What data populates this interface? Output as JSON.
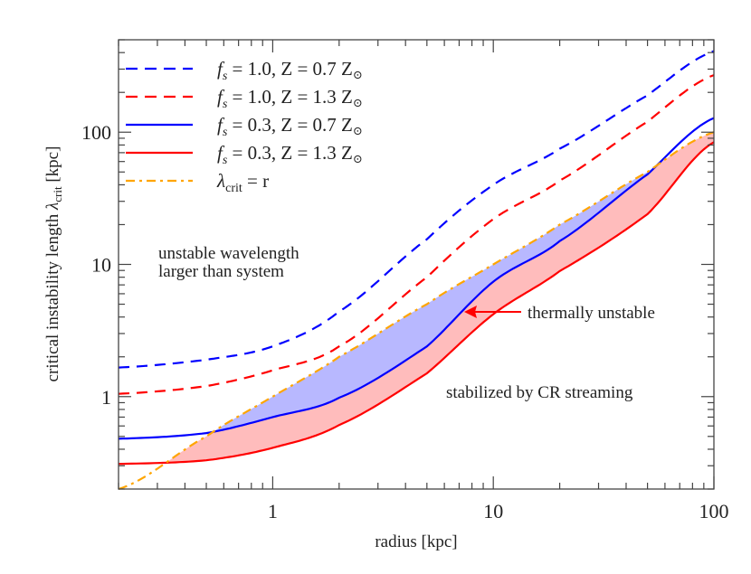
{
  "chart_data": {
    "type": "line",
    "xlabel": "radius [kpc]",
    "ylabel_main": "critical instability length ",
    "ylabel_symbol": "λ",
    "ylabel_sub": "crit",
    "ylabel_unit": " [kpc]",
    "xscale": "log",
    "yscale": "log",
    "xlim": [
      0.2,
      100
    ],
    "ylim": [
      0.2,
      500
    ],
    "x_ticks": [
      {
        "v": 1,
        "label": "1"
      },
      {
        "v": 10,
        "label": "10"
      },
      {
        "v": 100,
        "label": "100"
      }
    ],
    "y_ticks": [
      {
        "v": 1,
        "label": "1"
      },
      {
        "v": 10,
        "label": "10"
      },
      {
        "v": 100,
        "label": "100"
      }
    ],
    "grid": false,
    "legend_placement": "top-left",
    "x": [
      0.2,
      0.5,
      1,
      2,
      5,
      10,
      20,
      50,
      100
    ],
    "series": [
      {
        "name": "f_s = 1.0, Z = 0.7 Z_sun",
        "legend": {
          "f": "f",
          "s": "s",
          "text": " = 1.0, Z = 0.7 Z",
          "sun": "⊙"
        },
        "color": "#0000ff",
        "style": "dashed",
        "values": [
          1.66,
          1.9,
          2.4,
          4.4,
          15.5,
          40,
          75,
          190,
          410
        ]
      },
      {
        "name": "f_s = 1.0, Z = 1.3 Z_sun",
        "legend": {
          "f": "f",
          "s": "s",
          "text": " = 1.0, Z = 1.3 Z",
          "sun": "⊙"
        },
        "color": "#ff0000",
        "style": "dashed",
        "values": [
          1.05,
          1.2,
          1.58,
          2.4,
          8,
          22,
          43,
          120,
          270
        ]
      },
      {
        "name": "f_s = 0.3, Z = 0.7 Z_sun",
        "legend": {
          "f": "f",
          "s": "s",
          "text": " = 0.3, Z = 0.7 Z",
          "sun": "⊙"
        },
        "color": "#0000ff",
        "style": "solid",
        "values": [
          0.48,
          0.53,
          0.7,
          0.98,
          2.4,
          7.4,
          15,
          48,
          128
        ]
      },
      {
        "name": "f_s = 0.3, Z = 1.3 Z_sun",
        "legend": {
          "f": "f",
          "s": "s",
          "text": " = 0.3, Z = 1.3 Z",
          "sun": "⊙"
        },
        "color": "#ff0000",
        "style": "solid",
        "values": [
          0.31,
          0.33,
          0.41,
          0.61,
          1.5,
          4.2,
          8.9,
          24,
          84
        ]
      },
      {
        "name": "λcrit = r",
        "legend": {
          "f": "λ",
          "s": "crit",
          "text": " = r",
          "sun": ""
        },
        "color": "#ffa500",
        "style": "dashdot",
        "values": [
          0.2,
          0.5,
          1,
          2,
          5,
          10,
          20,
          50,
          100
        ]
      }
    ],
    "fills": {
      "unstable_blue": "#b8b8ff",
      "unstable_red": "#ffbcbc"
    },
    "annotations": {
      "unstable_line1": "unstable wavelength",
      "unstable_line2": "larger than system",
      "thermally_unstable": "thermally unstable",
      "stabilized": "stabilized by CR streaming",
      "arrow_color": "#ff0000"
    }
  }
}
